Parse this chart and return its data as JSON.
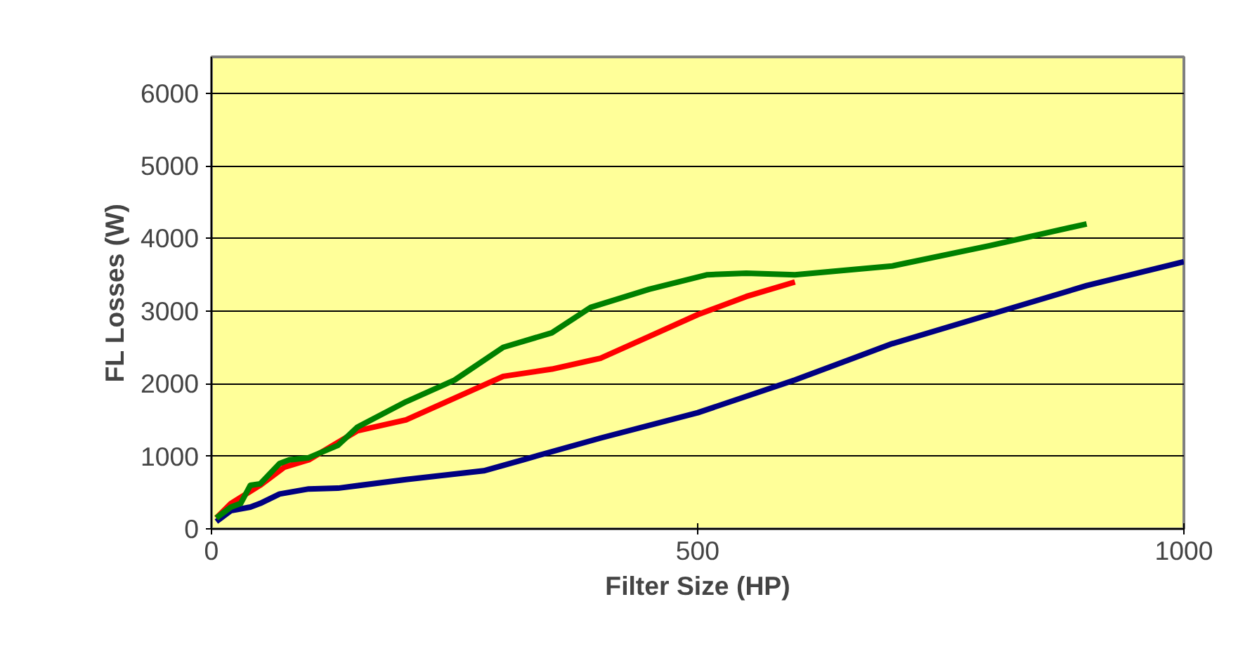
{
  "chart_data": {
    "type": "line",
    "xlabel": "Filter Size (HP)",
    "ylabel": "FL Losses (W)",
    "xlim": [
      0,
      1000
    ],
    "ylim": [
      0,
      6500
    ],
    "xticks": [
      0,
      500,
      1000
    ],
    "yticks": [
      0,
      1000,
      2000,
      3000,
      4000,
      5000,
      6000
    ],
    "grid": "y",
    "marker": "none",
    "line_style": "solid",
    "series": [
      {
        "color": "#000080",
        "x": [
          5,
          20,
          40,
          50,
          70,
          100,
          130,
          200,
          280,
          320,
          400,
          500,
          600,
          700,
          800,
          900,
          1000
        ],
        "values": [
          100,
          250,
          300,
          350,
          480,
          550,
          560,
          680,
          800,
          950,
          1250,
          1600,
          2050,
          2550,
          2950,
          3350,
          3680
        ]
      },
      {
        "color": "#ff0000",
        "x": [
          5,
          20,
          50,
          75,
          100,
          150,
          200,
          250,
          300,
          350,
          400,
          450,
          500,
          550,
          600
        ],
        "values": [
          150,
          350,
          600,
          850,
          950,
          1350,
          1500,
          1800,
          2100,
          2200,
          2350,
          2650,
          2950,
          3200,
          3400
        ]
      },
      {
        "color": "#008000",
        "x": [
          5,
          20,
          30,
          40,
          50,
          70,
          80,
          100,
          130,
          150,
          200,
          250,
          300,
          350,
          390,
          450,
          510,
          550,
          600,
          700,
          800,
          900
        ],
        "values": [
          150,
          300,
          350,
          600,
          620,
          900,
          950,
          980,
          1150,
          1400,
          1750,
          2050,
          2500,
          2700,
          3050,
          3300,
          3500,
          3520,
          3500,
          3620,
          3900,
          4200
        ]
      }
    ]
  }
}
